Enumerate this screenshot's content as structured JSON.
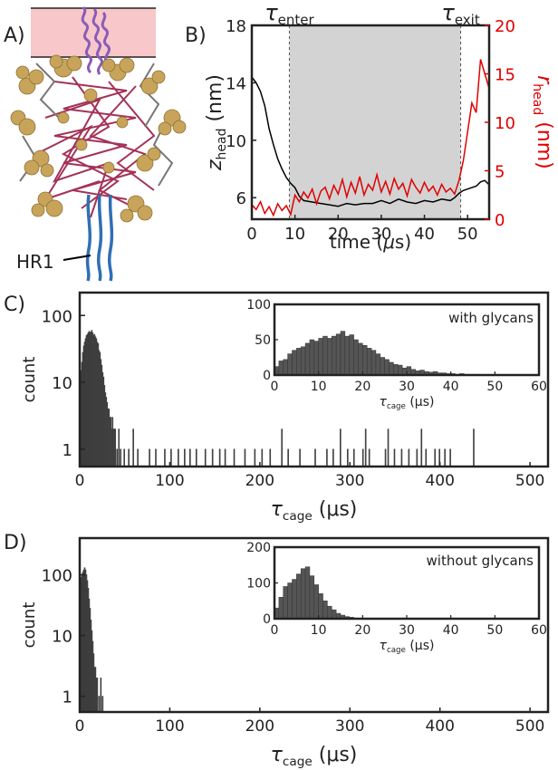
{
  "panel_labels": {
    "a": "A)",
    "b": "B)",
    "c": "C)",
    "d": "D)"
  },
  "panel_a": {
    "hr1_label": "HR1",
    "colors": {
      "membrane": "#f7c7c9",
      "glycan": "#c8a45a",
      "protein": "#9b1c45",
      "hr1": "#2f6fb4",
      "top_helix": "#8a5cb8"
    }
  },
  "chart_data": [
    {
      "id": "B",
      "type": "line",
      "xlabel_main": "time (",
      "xlabel_mu": "μ",
      "xlabel_tail": "s)",
      "ylabel_left": "z",
      "ylabel_left_sub": "head",
      "ylabel_left_unit": " (nm)",
      "ylabel_right": "r",
      "ylabel_right_sub": "head",
      "ylabel_right_unit": " (nm)",
      "xlim": [
        0,
        55
      ],
      "ylim_left": [
        4.5,
        18
      ],
      "ylim_right": [
        0,
        20
      ],
      "xticks": [
        0,
        10,
        20,
        30,
        40,
        50
      ],
      "yticks_left": [
        6,
        10,
        14,
        18
      ],
      "yticks_right": [
        0,
        5,
        10,
        15,
        20
      ],
      "shaded_region": [
        8.7,
        48.4
      ],
      "annotations": [
        {
          "symbol": "τ",
          "sub": "enter",
          "x": 8.7
        },
        {
          "symbol": "τ",
          "sub": "exit",
          "x": 48.4
        }
      ],
      "series": [
        {
          "axis": "left",
          "color": "#000000",
          "x": [
            0,
            1,
            2,
            3,
            4,
            5,
            6,
            7,
            8,
            9,
            10,
            11,
            12,
            14,
            16,
            18,
            20,
            22,
            24,
            26,
            28,
            30,
            32,
            34,
            36,
            38,
            40,
            42,
            44,
            46,
            47,
            48,
            49,
            50,
            51,
            52,
            53,
            54,
            55
          ],
          "y": [
            14.4,
            14,
            13.4,
            12.4,
            10.8,
            9.7,
            8.7,
            8,
            7.4,
            7,
            6.7,
            6.1,
            5.8,
            5.7,
            5.6,
            5.5,
            5.4,
            5.6,
            5.5,
            5.6,
            5.6,
            5.8,
            5.6,
            5.9,
            5.7,
            5.6,
            5.8,
            5.7,
            5.9,
            5.8,
            6,
            6.3,
            6.5,
            6.6,
            6.7,
            6.8,
            7.1,
            7.2,
            6.9
          ]
        },
        {
          "axis": "right",
          "color": "#e00000",
          "x": [
            0,
            1,
            2,
            3,
            4,
            5,
            6,
            7,
            8,
            9,
            10,
            11,
            12,
            13,
            14,
            15,
            16,
            17,
            18,
            19,
            20,
            21,
            22,
            23,
            24,
            25,
            26,
            27,
            28,
            29,
            30,
            31,
            32,
            33,
            34,
            35,
            36,
            37,
            38,
            39,
            40,
            41,
            42,
            43,
            44,
            45,
            46,
            47,
            48,
            49,
            50,
            51,
            52,
            53,
            54,
            55
          ],
          "y": [
            1.5,
            1,
            1.8,
            0.6,
            1.3,
            0.4,
            1.6,
            0.9,
            1.4,
            0.5,
            2.5,
            1.8,
            2.8,
            2.2,
            3.1,
            1.6,
            2.9,
            3.3,
            2.1,
            3.5,
            2.6,
            4.1,
            2.3,
            3.8,
            2.7,
            4.4,
            2.5,
            3.6,
            3,
            4.6,
            2.8,
            3.9,
            2.6,
            4.2,
            3.1,
            3.7,
            2.4,
            4.1,
            3.3,
            2.7,
            3.8,
            2.9,
            3.4,
            2.5,
            3.6,
            2.8,
            3.2,
            2.6,
            4,
            6,
            9,
            12,
            11,
            16.5,
            15,
            13.5
          ]
        }
      ]
    },
    {
      "id": "C",
      "type": "bar",
      "log_y": true,
      "xlabel": "τ",
      "xlabel_sub": "cage",
      "xlabel_unit": " (μs)",
      "ylabel": "count",
      "xlim": [
        0,
        520
      ],
      "ylim": [
        0.55,
        220
      ],
      "xticks": [
        0,
        100,
        200,
        300,
        400,
        500
      ],
      "yticks": [
        1,
        10,
        100
      ],
      "ytick_labels": [
        "1",
        "10",
        "100"
      ],
      "bins": [
        {
          "x": 1,
          "y": 10
        },
        {
          "x": 2,
          "y": 15
        },
        {
          "x": 3,
          "y": 20
        },
        {
          "x": 4,
          "y": 28
        },
        {
          "x": 5,
          "y": 35
        },
        {
          "x": 6,
          "y": 40
        },
        {
          "x": 7,
          "y": 45
        },
        {
          "x": 8,
          "y": 50
        },
        {
          "x": 9,
          "y": 52
        },
        {
          "x": 10,
          "y": 55
        },
        {
          "x": 11,
          "y": 58
        },
        {
          "x": 12,
          "y": 55
        },
        {
          "x": 13,
          "y": 57
        },
        {
          "x": 14,
          "y": 60
        },
        {
          "x": 15,
          "y": 55
        },
        {
          "x": 16,
          "y": 50
        },
        {
          "x": 17,
          "y": 52
        },
        {
          "x": 18,
          "y": 48
        },
        {
          "x": 19,
          "y": 45
        },
        {
          "x": 20,
          "y": 40
        },
        {
          "x": 21,
          "y": 38
        },
        {
          "x": 22,
          "y": 30
        },
        {
          "x": 23,
          "y": 28
        },
        {
          "x": 24,
          "y": 22
        },
        {
          "x": 25,
          "y": 18
        },
        {
          "x": 26,
          "y": 14
        },
        {
          "x": 27,
          "y": 12
        },
        {
          "x": 28,
          "y": 9
        },
        {
          "x": 29,
          "y": 7
        },
        {
          "x": 30,
          "y": 6
        },
        {
          "x": 31,
          "y": 5
        },
        {
          "x": 32,
          "y": 4
        },
        {
          "x": 33,
          "y": 4
        },
        {
          "x": 34,
          "y": 3
        },
        {
          "x": 35,
          "y": 3
        },
        {
          "x": 36,
          "y": 2
        },
        {
          "x": 37,
          "y": 3
        },
        {
          "x": 38,
          "y": 2
        },
        {
          "x": 39,
          "y": 2
        },
        {
          "x": 40,
          "y": 2
        },
        {
          "x": 42,
          "y": 1
        },
        {
          "x": 44,
          "y": 2
        },
        {
          "x": 46,
          "y": 1
        },
        {
          "x": 50,
          "y": 1
        },
        {
          "x": 55,
          "y": 1
        },
        {
          "x": 60,
          "y": 2
        },
        {
          "x": 65,
          "y": 1
        },
        {
          "x": 78,
          "y": 1
        },
        {
          "x": 85,
          "y": 1
        },
        {
          "x": 95,
          "y": 1
        },
        {
          "x": 102,
          "y": 1
        },
        {
          "x": 110,
          "y": 1
        },
        {
          "x": 117,
          "y": 1
        },
        {
          "x": 123,
          "y": 1
        },
        {
          "x": 130,
          "y": 1
        },
        {
          "x": 140,
          "y": 1
        },
        {
          "x": 148,
          "y": 1
        },
        {
          "x": 156,
          "y": 1
        },
        {
          "x": 162,
          "y": 1
        },
        {
          "x": 172,
          "y": 1
        },
        {
          "x": 184,
          "y": 1
        },
        {
          "x": 195,
          "y": 1
        },
        {
          "x": 203,
          "y": 1
        },
        {
          "x": 212,
          "y": 1
        },
        {
          "x": 225,
          "y": 2
        },
        {
          "x": 232,
          "y": 1
        },
        {
          "x": 245,
          "y": 1
        },
        {
          "x": 262,
          "y": 1
        },
        {
          "x": 275,
          "y": 1
        },
        {
          "x": 282,
          "y": 1
        },
        {
          "x": 290,
          "y": 2
        },
        {
          "x": 298,
          "y": 1
        },
        {
          "x": 305,
          "y": 1
        },
        {
          "x": 315,
          "y": 1
        },
        {
          "x": 318,
          "y": 2
        },
        {
          "x": 322,
          "y": 1
        },
        {
          "x": 340,
          "y": 1
        },
        {
          "x": 343,
          "y": 2
        },
        {
          "x": 350,
          "y": 1
        },
        {
          "x": 358,
          "y": 1
        },
        {
          "x": 366,
          "y": 1
        },
        {
          "x": 375,
          "y": 1
        },
        {
          "x": 380,
          "y": 2
        },
        {
          "x": 385,
          "y": 1
        },
        {
          "x": 395,
          "y": 1
        },
        {
          "x": 400,
          "y": 1
        },
        {
          "x": 406,
          "y": 1
        },
        {
          "x": 412,
          "y": 1
        },
        {
          "x": 438,
          "y": 2
        }
      ],
      "inset": {
        "label": "with glycans",
        "xlim": [
          0,
          60
        ],
        "ylim": [
          0,
          100
        ],
        "xticks": [
          0,
          10,
          20,
          30,
          40,
          50,
          60
        ],
        "yticks": [
          0,
          50,
          100
        ],
        "xlabel": "τ",
        "xlabel_sub": "cage",
        "xlabel_unit": " (μs)",
        "bin_width": 1,
        "x": [
          0,
          1,
          2,
          3,
          4,
          5,
          6,
          7,
          8,
          9,
          10,
          11,
          12,
          13,
          14,
          15,
          16,
          17,
          18,
          19,
          20,
          21,
          22,
          23,
          24,
          25,
          26,
          27,
          28,
          29,
          30,
          31,
          32,
          33,
          34,
          35,
          36,
          37,
          38,
          39,
          40,
          41,
          42,
          43,
          44,
          45
        ],
        "y": [
          12,
          20,
          22,
          30,
          35,
          38,
          40,
          45,
          50,
          48,
          52,
          55,
          52,
          55,
          58,
          62,
          55,
          57,
          50,
          45,
          42,
          38,
          35,
          30,
          25,
          22,
          18,
          15,
          14,
          10,
          12,
          8,
          6,
          7,
          5,
          4,
          5,
          3,
          3,
          2,
          2,
          1,
          2,
          1,
          1,
          1
        ]
      }
    },
    {
      "id": "D",
      "type": "bar",
      "log_y": true,
      "xlabel": "τ",
      "xlabel_sub": "cage",
      "xlabel_unit": " (μs)",
      "ylabel": "count",
      "xlim": [
        0,
        520
      ],
      "ylim": [
        0.55,
        400
      ],
      "xticks": [
        0,
        100,
        200,
        300,
        400,
        500
      ],
      "yticks": [
        1,
        10,
        100
      ],
      "ytick_labels": [
        "1",
        "10",
        "100"
      ],
      "bins": [
        {
          "x": 1,
          "y": 60
        },
        {
          "x": 2,
          "y": 90
        },
        {
          "x": 3,
          "y": 100
        },
        {
          "x": 4,
          "y": 110
        },
        {
          "x": 5,
          "y": 120
        },
        {
          "x": 6,
          "y": 130
        },
        {
          "x": 7,
          "y": 120
        },
        {
          "x": 8,
          "y": 100
        },
        {
          "x": 9,
          "y": 80
        },
        {
          "x": 10,
          "y": 60
        },
        {
          "x": 11,
          "y": 40
        },
        {
          "x": 12,
          "y": 28
        },
        {
          "x": 13,
          "y": 18
        },
        {
          "x": 14,
          "y": 12
        },
        {
          "x": 15,
          "y": 8
        },
        {
          "x": 16,
          "y": 5
        },
        {
          "x": 17,
          "y": 3
        },
        {
          "x": 18,
          "y": 3
        },
        {
          "x": 19,
          "y": 2
        },
        {
          "x": 20,
          "y": 2
        },
        {
          "x": 22,
          "y": 1
        },
        {
          "x": 24,
          "y": 2
        },
        {
          "x": 26,
          "y": 1
        }
      ],
      "inset": {
        "label": "without glycans",
        "xlim": [
          0,
          60
        ],
        "ylim": [
          0,
          200
        ],
        "xticks": [
          0,
          10,
          20,
          30,
          40,
          50,
          60
        ],
        "yticks": [
          0,
          100,
          200
        ],
        "xlabel": "τ",
        "xlabel_sub": "cage",
        "xlabel_unit": " (μs)",
        "bin_width": 1,
        "x": [
          0,
          1,
          2,
          3,
          4,
          5,
          6,
          7,
          8,
          9,
          10,
          11,
          12,
          13,
          14,
          15,
          16,
          17,
          18,
          19
        ],
        "y": [
          30,
          60,
          90,
          100,
          110,
          125,
          140,
          145,
          120,
          95,
          70,
          50,
          35,
          25,
          15,
          10,
          6,
          4,
          2,
          1
        ]
      }
    }
  ]
}
